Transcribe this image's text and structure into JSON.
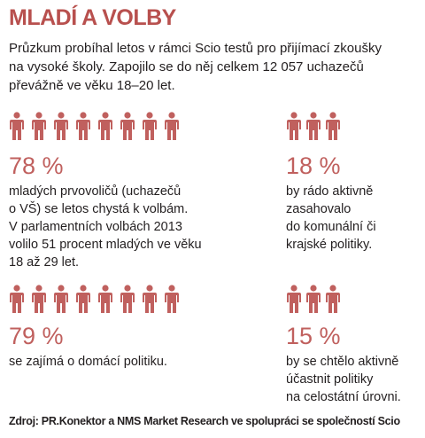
{
  "title": "MLADÍ A VOLBY",
  "intro": [
    "Průzkum probíhal letos v rámci Scio testů pro přijímací zkoušky",
    "na vysoké školy. Zapojilo se do něj celkem 12 057 uchazečů",
    "převážně ve věku 18–20 let."
  ],
  "stats": [
    {
      "value": "78 %",
      "lines": [
        "mladých prvovoličů (uchazečů",
        "o VŠ) se letos chystá k volbám.",
        "V parlamentních volbách 2013",
        "volilo 51 procent mladých ve věku",
        "18 až 29 let."
      ]
    },
    {
      "value": "18 %",
      "lines": [
        "by rádo aktivně",
        "zasahovalo",
        "do komunální či",
        "krajské politiky."
      ]
    },
    {
      "value": "79 %",
      "lines": [
        "se zajímá o domácí politiku."
      ]
    },
    {
      "value": "15 %",
      "lines": [
        "by se chtělo aktivně",
        "účastnit politiky",
        "na celostátní úrovni."
      ]
    }
  ],
  "source": "Zdroj: PR.Konektor a NMS Market Research ve spolupráci se společností Scio"
}
